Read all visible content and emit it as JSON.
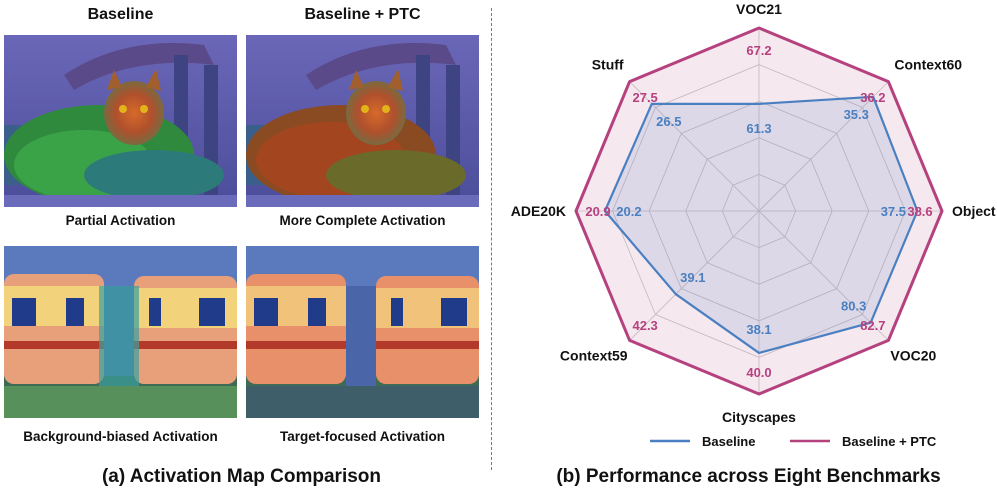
{
  "left_panel": {
    "col_titles": [
      "Baseline",
      "Baseline + PTC"
    ],
    "image_captions": [
      "Partial Activation",
      "More Complete Activation",
      "Background-biased Activation",
      "Target-focused Activation"
    ],
    "caption": "(a) Activation Map Comparison"
  },
  "right_panel": {
    "caption": "(b) Performance across Eight Benchmarks"
  },
  "chart_data": {
    "type": "radar",
    "axes": [
      "VOC21",
      "Context60",
      "Object",
      "VOC20",
      "Cityscapes",
      "Context59",
      "ADE20K",
      "Stuff"
    ],
    "series": [
      {
        "name": "Baseline",
        "color": "#4a7fc1",
        "values": [
          61.3,
          35.3,
          37.5,
          80.3,
          38.1,
          39.1,
          20.2,
          26.5
        ]
      },
      {
        "name": "Baseline + PTC",
        "color": "#b5417f",
        "values": [
          67.2,
          36.2,
          38.6,
          82.7,
          40.0,
          42.3,
          20.9,
          27.5
        ]
      }
    ],
    "grid": true,
    "legend_position": "bottom"
  }
}
